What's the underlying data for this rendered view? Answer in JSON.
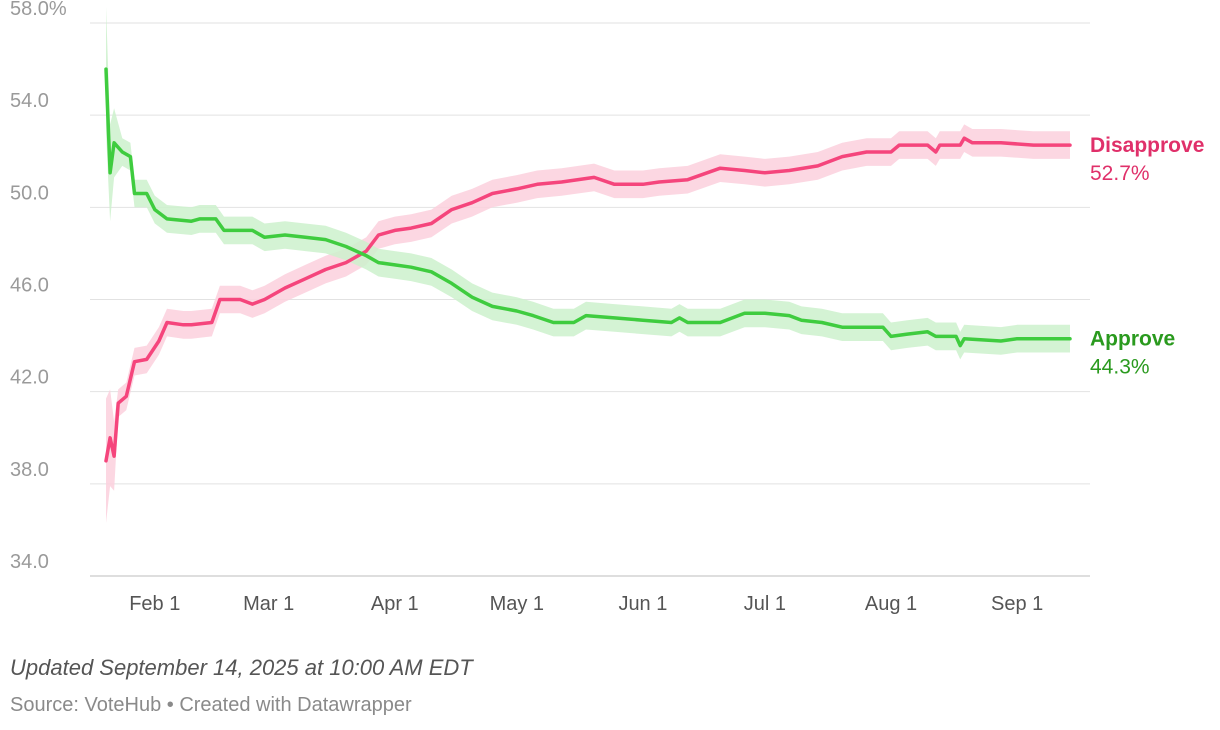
{
  "chart_data": {
    "type": "line",
    "y_axis": {
      "min": 34,
      "max": 58,
      "ticks": [
        34,
        38,
        42,
        46,
        50,
        54,
        58
      ],
      "tick_labels": [
        "34.0",
        "38.0",
        "42.0",
        "46.0",
        "50.0",
        "54.0",
        "58.0%"
      ],
      "grid": true
    },
    "x_axis": {
      "start": "2025-01-20",
      "end": "2025-09-14",
      "ticks": [
        "2025-02-01",
        "2025-03-01",
        "2025-04-01",
        "2025-05-01",
        "2025-06-01",
        "2025-07-01",
        "2025-08-01",
        "2025-09-01"
      ],
      "tick_labels": [
        "Feb 1",
        "Mar 1",
        "Apr 1",
        "May 1",
        "Jun 1",
        "Jul 1",
        "Aug 1",
        "Sep 1"
      ]
    },
    "series": [
      {
        "name": "Disapprove",
        "end_label": "52.7%",
        "color": "#f5457c",
        "band_color": "#fbd0dd",
        "band_halfwidth": 0.6,
        "points": [
          [
            "2025-01-20",
            39.0
          ],
          [
            "2025-01-21",
            40.0
          ],
          [
            "2025-01-22",
            39.2
          ],
          [
            "2025-01-23",
            41.5
          ],
          [
            "2025-01-25",
            41.8
          ],
          [
            "2025-01-27",
            43.3
          ],
          [
            "2025-01-30",
            43.4
          ],
          [
            "2025-02-02",
            44.2
          ],
          [
            "2025-02-04",
            45.0
          ],
          [
            "2025-02-08",
            44.9
          ],
          [
            "2025-02-10",
            44.9
          ],
          [
            "2025-02-15",
            45.0
          ],
          [
            "2025-02-17",
            46.0
          ],
          [
            "2025-02-22",
            46.0
          ],
          [
            "2025-02-25",
            45.8
          ],
          [
            "2025-02-28",
            46.0
          ],
          [
            "2025-03-05",
            46.5
          ],
          [
            "2025-03-10",
            46.9
          ],
          [
            "2025-03-15",
            47.3
          ],
          [
            "2025-03-20",
            47.6
          ],
          [
            "2025-03-25",
            48.1
          ],
          [
            "2025-03-28",
            48.8
          ],
          [
            "2025-04-01",
            49.0
          ],
          [
            "2025-04-05",
            49.1
          ],
          [
            "2025-04-10",
            49.3
          ],
          [
            "2025-04-15",
            49.9
          ],
          [
            "2025-04-20",
            50.2
          ],
          [
            "2025-04-25",
            50.6
          ],
          [
            "2025-05-01",
            50.8
          ],
          [
            "2025-05-06",
            51.0
          ],
          [
            "2025-05-12",
            51.1
          ],
          [
            "2025-05-20",
            51.3
          ],
          [
            "2025-05-25",
            51.0
          ],
          [
            "2025-06-01",
            51.0
          ],
          [
            "2025-06-05",
            51.1
          ],
          [
            "2025-06-12",
            51.2
          ],
          [
            "2025-06-20",
            51.7
          ],
          [
            "2025-06-26",
            51.6
          ],
          [
            "2025-07-01",
            51.5
          ],
          [
            "2025-07-07",
            51.6
          ],
          [
            "2025-07-14",
            51.8
          ],
          [
            "2025-07-20",
            52.2
          ],
          [
            "2025-07-26",
            52.4
          ],
          [
            "2025-08-01",
            52.4
          ],
          [
            "2025-08-03",
            52.7
          ],
          [
            "2025-08-10",
            52.7
          ],
          [
            "2025-08-12",
            52.4
          ],
          [
            "2025-08-13",
            52.7
          ],
          [
            "2025-08-18",
            52.7
          ],
          [
            "2025-08-19",
            53.0
          ],
          [
            "2025-08-21",
            52.8
          ],
          [
            "2025-08-28",
            52.8
          ],
          [
            "2025-09-05",
            52.7
          ],
          [
            "2025-09-14",
            52.7
          ]
        ]
      },
      {
        "name": "Approve",
        "end_label": "44.3%",
        "color": "#3fcc3f",
        "band_color": "#cdf1cd",
        "band_halfwidth": 0.6,
        "points": [
          [
            "2025-01-20",
            56.0
          ],
          [
            "2025-01-21",
            51.5
          ],
          [
            "2025-01-22",
            52.8
          ],
          [
            "2025-01-24",
            52.4
          ],
          [
            "2025-01-26",
            52.2
          ],
          [
            "2025-01-27",
            50.6
          ],
          [
            "2025-01-30",
            50.6
          ],
          [
            "2025-02-01",
            49.9
          ],
          [
            "2025-02-04",
            49.5
          ],
          [
            "2025-02-10",
            49.4
          ],
          [
            "2025-02-12",
            49.5
          ],
          [
            "2025-02-16",
            49.5
          ],
          [
            "2025-02-18",
            49.0
          ],
          [
            "2025-02-25",
            49.0
          ],
          [
            "2025-02-28",
            48.7
          ],
          [
            "2025-03-05",
            48.8
          ],
          [
            "2025-03-10",
            48.7
          ],
          [
            "2025-03-15",
            48.6
          ],
          [
            "2025-03-20",
            48.3
          ],
          [
            "2025-03-25",
            47.9
          ],
          [
            "2025-03-28",
            47.6
          ],
          [
            "2025-04-01",
            47.5
          ],
          [
            "2025-04-05",
            47.4
          ],
          [
            "2025-04-10",
            47.2
          ],
          [
            "2025-04-15",
            46.7
          ],
          [
            "2025-04-20",
            46.1
          ],
          [
            "2025-04-25",
            45.7
          ],
          [
            "2025-05-01",
            45.5
          ],
          [
            "2025-05-05",
            45.3
          ],
          [
            "2025-05-10",
            45.0
          ],
          [
            "2025-05-15",
            45.0
          ],
          [
            "2025-05-18",
            45.3
          ],
          [
            "2025-05-25",
            45.2
          ],
          [
            "2025-06-01",
            45.1
          ],
          [
            "2025-06-08",
            45.0
          ],
          [
            "2025-06-10",
            45.2
          ],
          [
            "2025-06-12",
            45.0
          ],
          [
            "2025-06-20",
            45.0
          ],
          [
            "2025-06-26",
            45.4
          ],
          [
            "2025-07-01",
            45.4
          ],
          [
            "2025-07-07",
            45.3
          ],
          [
            "2025-07-10",
            45.1
          ],
          [
            "2025-07-15",
            45.0
          ],
          [
            "2025-07-20",
            44.8
          ],
          [
            "2025-07-30",
            44.8
          ],
          [
            "2025-08-01",
            44.4
          ],
          [
            "2025-08-05",
            44.5
          ],
          [
            "2025-08-10",
            44.6
          ],
          [
            "2025-08-12",
            44.4
          ],
          [
            "2025-08-17",
            44.4
          ],
          [
            "2025-08-18",
            44.0
          ],
          [
            "2025-08-19",
            44.3
          ],
          [
            "2025-08-28",
            44.2
          ],
          [
            "2025-09-01",
            44.3
          ],
          [
            "2025-09-14",
            44.3
          ]
        ]
      }
    ],
    "legend": "end-of-line labels"
  },
  "footer": {
    "updated": "Updated September 14, 2025 at 10:00 AM EDT",
    "source": "Source: VoteHub • Created with Datawrapper"
  }
}
